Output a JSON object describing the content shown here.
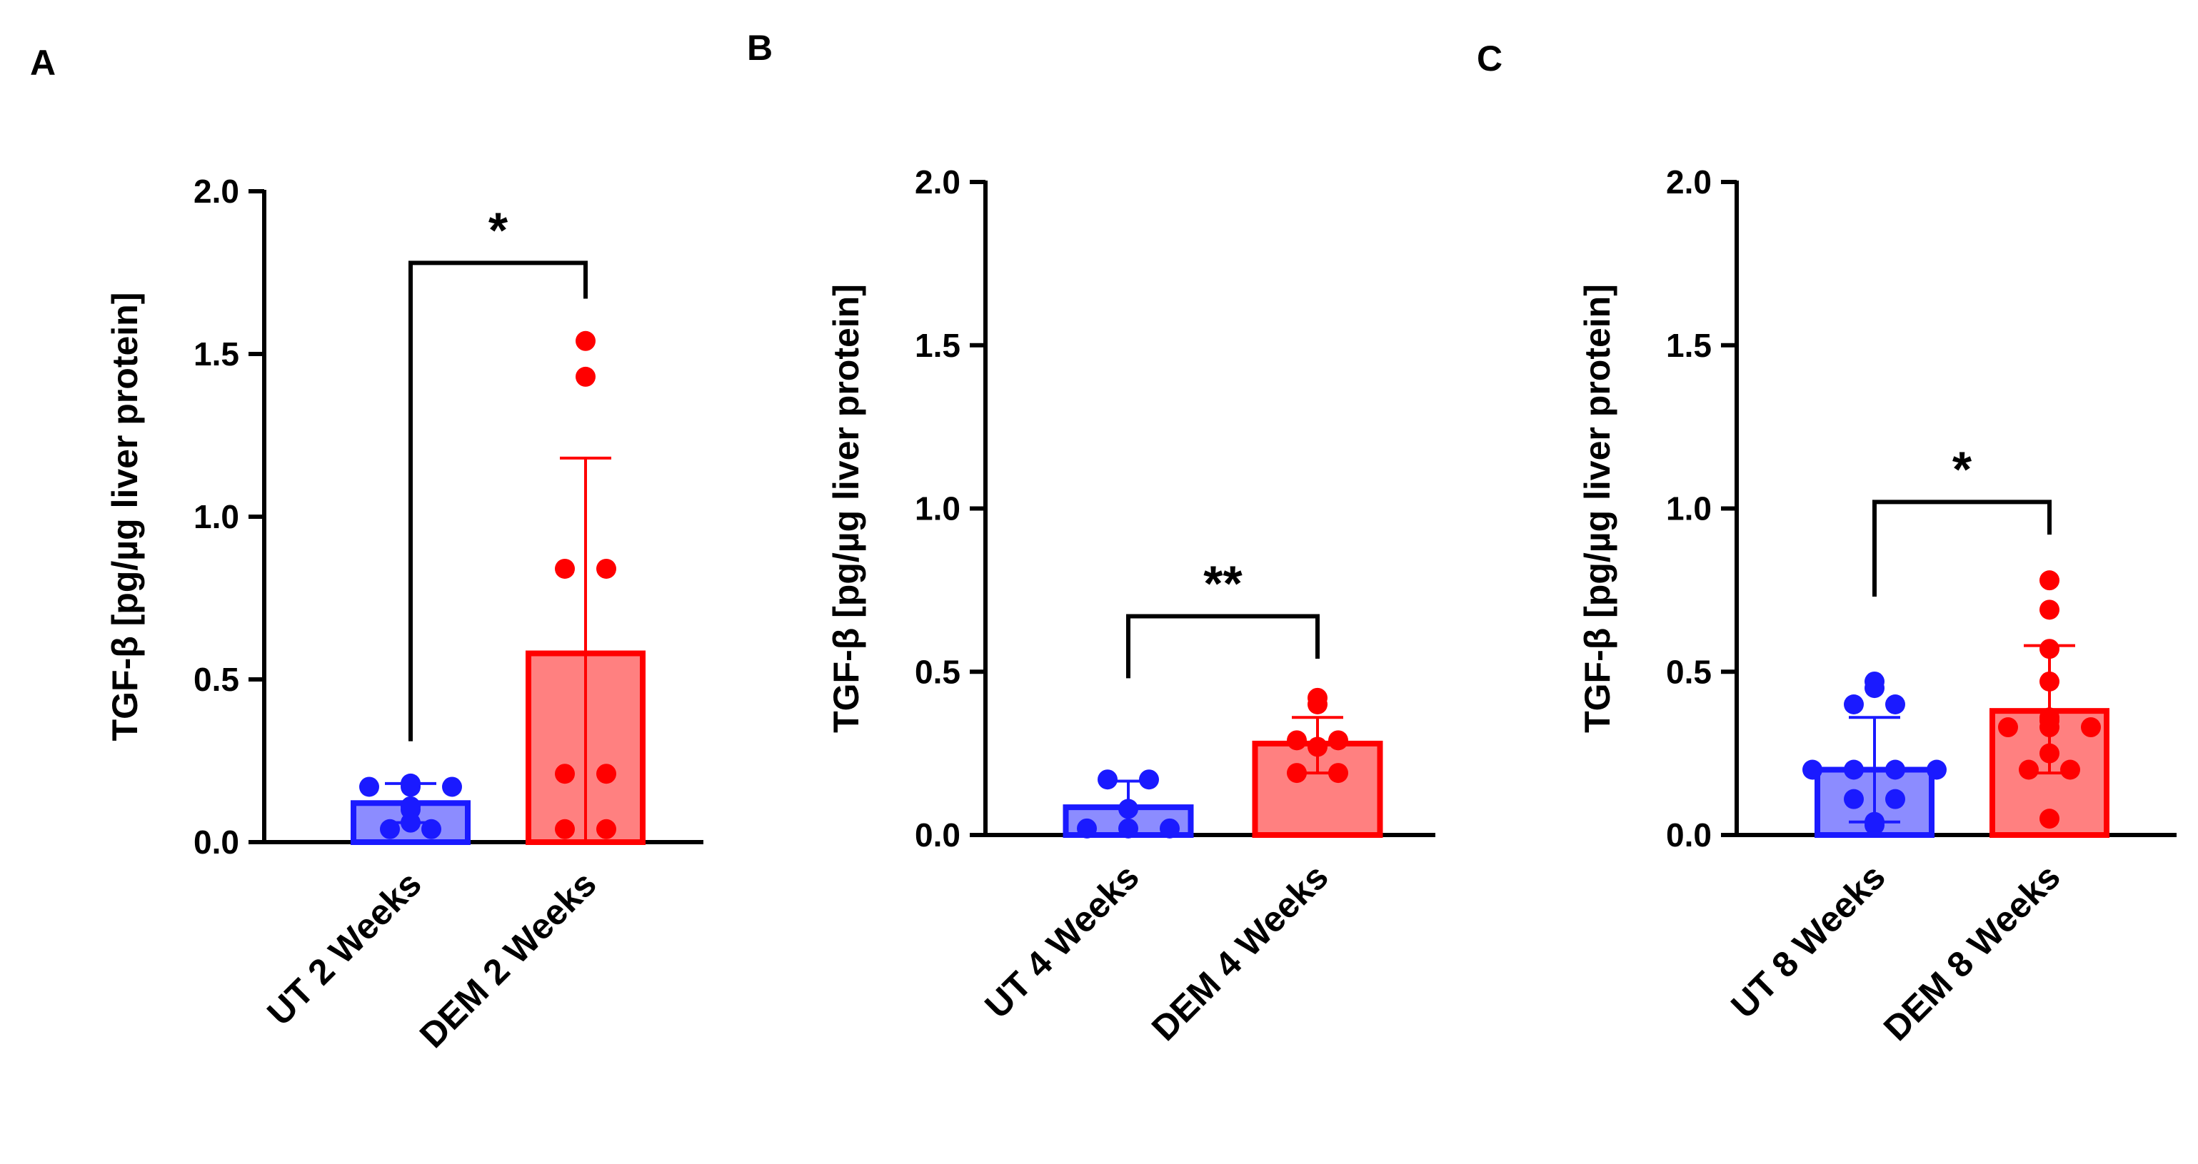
{
  "figure": {
    "colors": {
      "ut_stroke": "#1a1aff",
      "ut_fill": "#8c8cff",
      "dem_stroke": "#ff0000",
      "dem_fill": "#ff8080",
      "axis": "#000000"
    }
  },
  "chart_data": [
    {
      "panel": "A",
      "type": "bar",
      "ylabel": "TGF-β [pg/µg liver protein]",
      "ylim": [
        0,
        2.0
      ],
      "yticks": [
        "0.0",
        "0.5",
        "1.0",
        "1.5",
        "2.0"
      ],
      "categories": [
        "UT 2 Weeks",
        "DEM 2 Weeks"
      ],
      "bars": [
        {
          "name": "UT 2 Weeks",
          "mean": 0.12,
          "sd_low": 0.06,
          "sd_high": 0.18,
          "points": [
            0.18,
            0.17,
            0.17,
            0.17,
            0.11,
            0.1,
            0.06,
            0.04,
            0.04
          ]
        },
        {
          "name": "DEM 2 Weeks",
          "mean": 0.58,
          "sd_low": 0.0,
          "sd_high": 1.18,
          "points": [
            1.54,
            1.43,
            0.84,
            0.84,
            0.21,
            0.21,
            0.04,
            0.04
          ]
        }
      ],
      "significance": {
        "label": "*",
        "bracket_y": 1.78,
        "left_drop_to": 0.31,
        "right_drop_to": 1.67
      }
    },
    {
      "panel": "B",
      "type": "bar",
      "ylabel": "TGF-β [pg/µg liver protein]",
      "ylim": [
        0,
        2.0
      ],
      "yticks": [
        "0.0",
        "0.5",
        "1.0",
        "1.5",
        "2.0"
      ],
      "categories": [
        "UT 4 Weeks",
        "DEM 4 Weeks"
      ],
      "bars": [
        {
          "name": "UT 4 Weeks",
          "mean": 0.085,
          "sd_low": 0.0,
          "sd_high": 0.165,
          "points": [
            0.17,
            0.17,
            0.08,
            0.02,
            0.02,
            0.02
          ]
        },
        {
          "name": "DEM 4 Weeks",
          "mean": 0.28,
          "sd_low": 0.19,
          "sd_high": 0.36,
          "points": [
            0.42,
            0.4,
            0.29,
            0.29,
            0.27,
            0.19,
            0.19
          ]
        }
      ],
      "significance": {
        "label": "**",
        "bracket_y": 0.67,
        "left_drop_to": 0.48,
        "right_drop_to": 0.54
      }
    },
    {
      "panel": "C",
      "type": "bar",
      "ylabel": "TGF-β [pg/µg liver protein]",
      "ylim": [
        0,
        2.0
      ],
      "yticks": [
        "0.0",
        "0.5",
        "1.0",
        "1.5",
        "2.0"
      ],
      "categories": [
        "UT 8 Weeks",
        "DEM 8 Weeks"
      ],
      "bars": [
        {
          "name": "UT 8 Weeks",
          "mean": 0.2,
          "sd_low": 0.04,
          "sd_high": 0.36,
          "points": [
            0.47,
            0.45,
            0.4,
            0.4,
            0.2,
            0.2,
            0.2,
            0.2,
            0.11,
            0.11,
            0.04,
            0.03
          ]
        },
        {
          "name": "DEM 8 Weeks",
          "mean": 0.38,
          "sd_low": 0.19,
          "sd_high": 0.58,
          "points": [
            0.78,
            0.69,
            0.57,
            0.47,
            0.36,
            0.35,
            0.33,
            0.33,
            0.33,
            0.25,
            0.2,
            0.2,
            0.05
          ]
        }
      ],
      "significance": {
        "label": "*",
        "bracket_y": 1.02,
        "left_drop_to": 0.73,
        "right_drop_to": 0.92
      }
    }
  ]
}
